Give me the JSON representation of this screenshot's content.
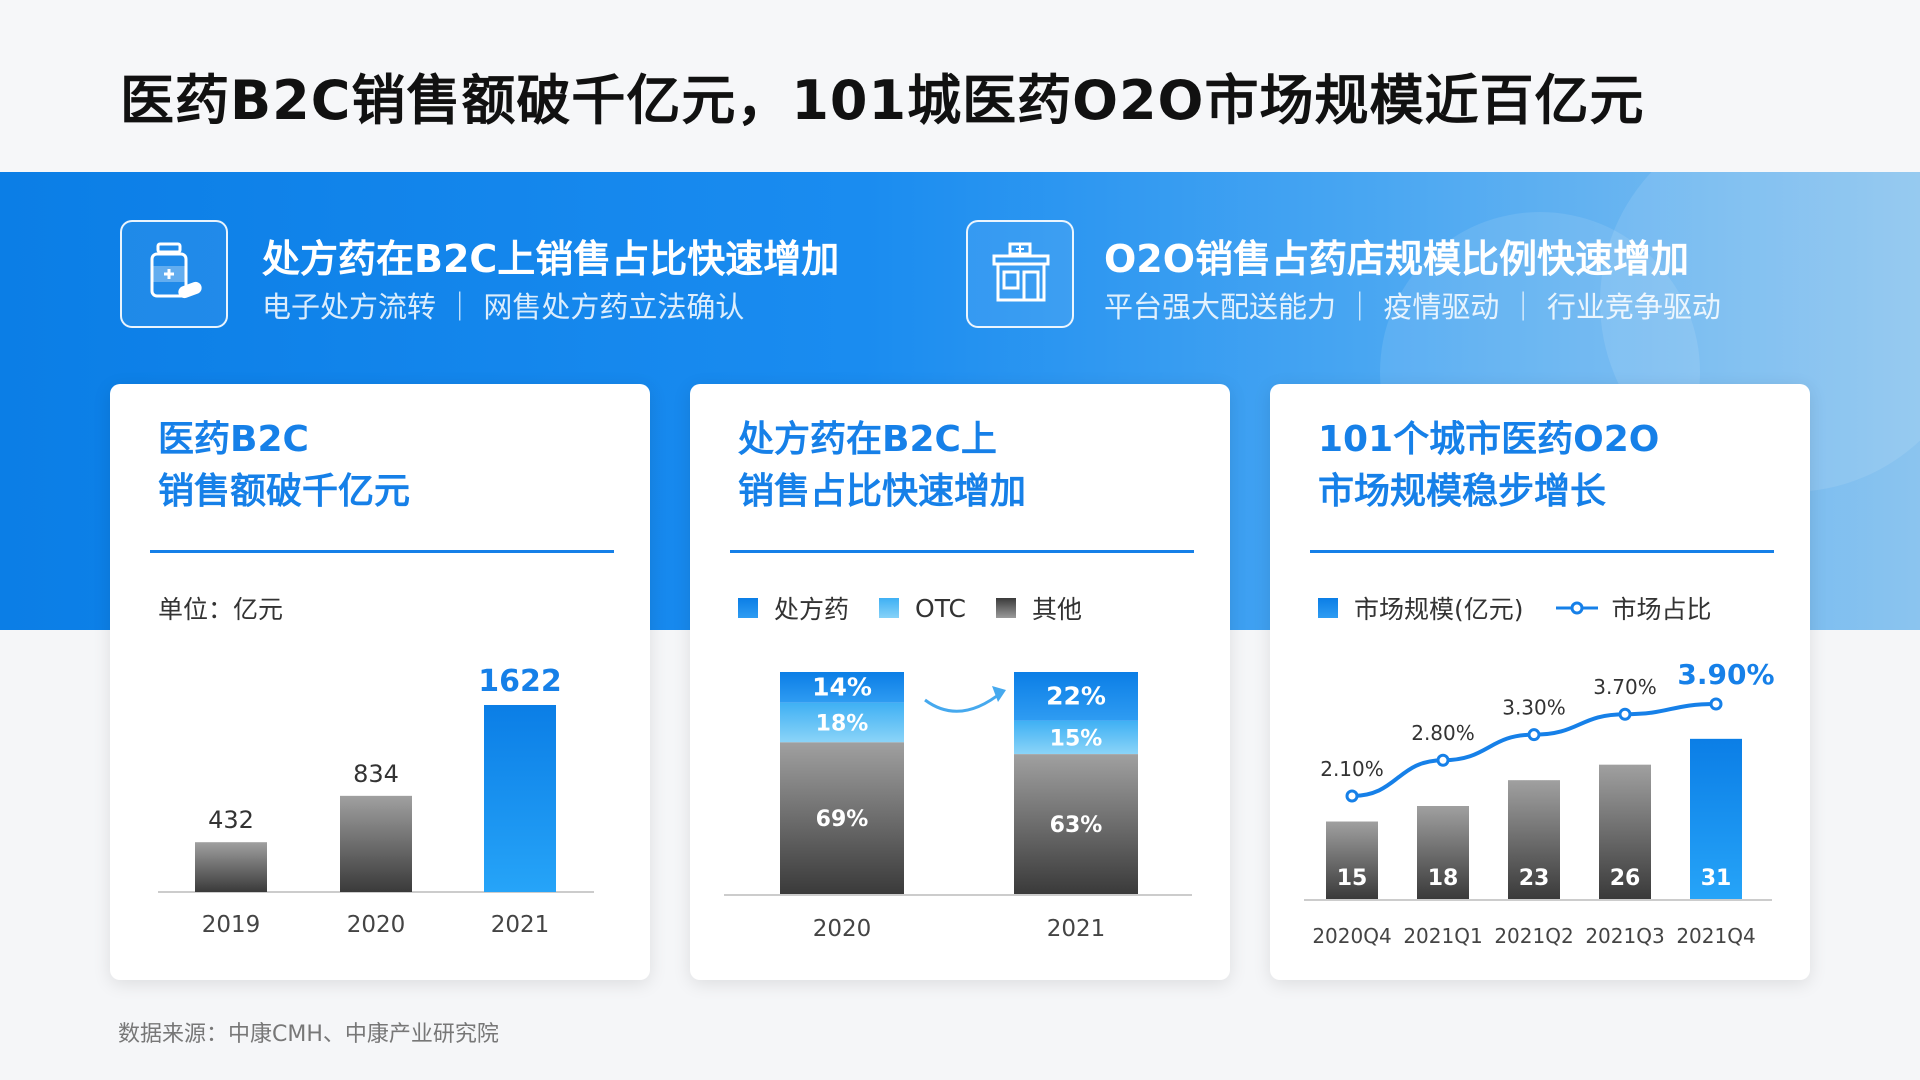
{
  "title": "医药B2C销售额破千亿元，101城医药O2O市场规模近百亿元",
  "highlights": [
    {
      "icon": "medicine-bottle-icon",
      "title": "处方药在B2C上销售占比快速增加",
      "subtitle": "电子处方流转 ｜ 网售处方药立法确认"
    },
    {
      "icon": "pharmacy-store-icon",
      "title": "O2O销售占药店规模比例快速增加",
      "subtitle": "平台强大配送能力 ｜ 疫情驱动 ｜ 行业竞争驱动"
    }
  ],
  "cards": [
    {
      "title_line1": "医药B2C",
      "title_line2": "销售额破千亿元",
      "unit": "单位：亿元"
    },
    {
      "title_line1": "处方药在B2C上",
      "title_line2": "销售占比快速增加"
    },
    {
      "title_line1": "101个城市医药O2O",
      "title_line2": "市场规模稳步增长"
    }
  ],
  "source": "数据来源：中康CMH、中康产业研究院",
  "colors": {
    "accent": "#1680e8",
    "light_blue": "#5fc0f5",
    "gray_dark": "#4a4a4a",
    "gray_light": "#9a9a9a"
  },
  "chart_data": [
    {
      "type": "bar",
      "unit": "亿元",
      "categories": [
        "2019",
        "2020",
        "2021"
      ],
      "values": [
        432,
        834,
        1622
      ],
      "ylim": [
        0,
        1700
      ],
      "highlight_index": 2
    },
    {
      "type": "bar",
      "stacked": true,
      "categories": [
        "2020",
        "2021"
      ],
      "series": [
        {
          "name": "处方药",
          "values": [
            14,
            22
          ],
          "labels": [
            "14%",
            "22%"
          ]
        },
        {
          "name": "OTC",
          "values": [
            18,
            15
          ],
          "labels": [
            "18%",
            "15%"
          ]
        },
        {
          "name": "其他",
          "values": [
            69,
            63
          ],
          "labels": [
            "69%",
            "63%"
          ]
        }
      ]
    },
    {
      "type": "bar+line",
      "categories": [
        "2020Q4",
        "2021Q1",
        "2021Q2",
        "2021Q3",
        "2021Q4"
      ],
      "series": [
        {
          "name": "市场规模(亿元)",
          "kind": "bar",
          "values": [
            15,
            18,
            23,
            26,
            31
          ]
        },
        {
          "name": "市场占比",
          "kind": "line",
          "values": [
            2.1,
            2.8,
            3.3,
            3.7,
            3.9
          ],
          "labels": [
            "2.10%",
            "2.80%",
            "3.30%",
            "3.70%",
            "3.90%"
          ]
        }
      ],
      "highlight_index": 4
    }
  ]
}
